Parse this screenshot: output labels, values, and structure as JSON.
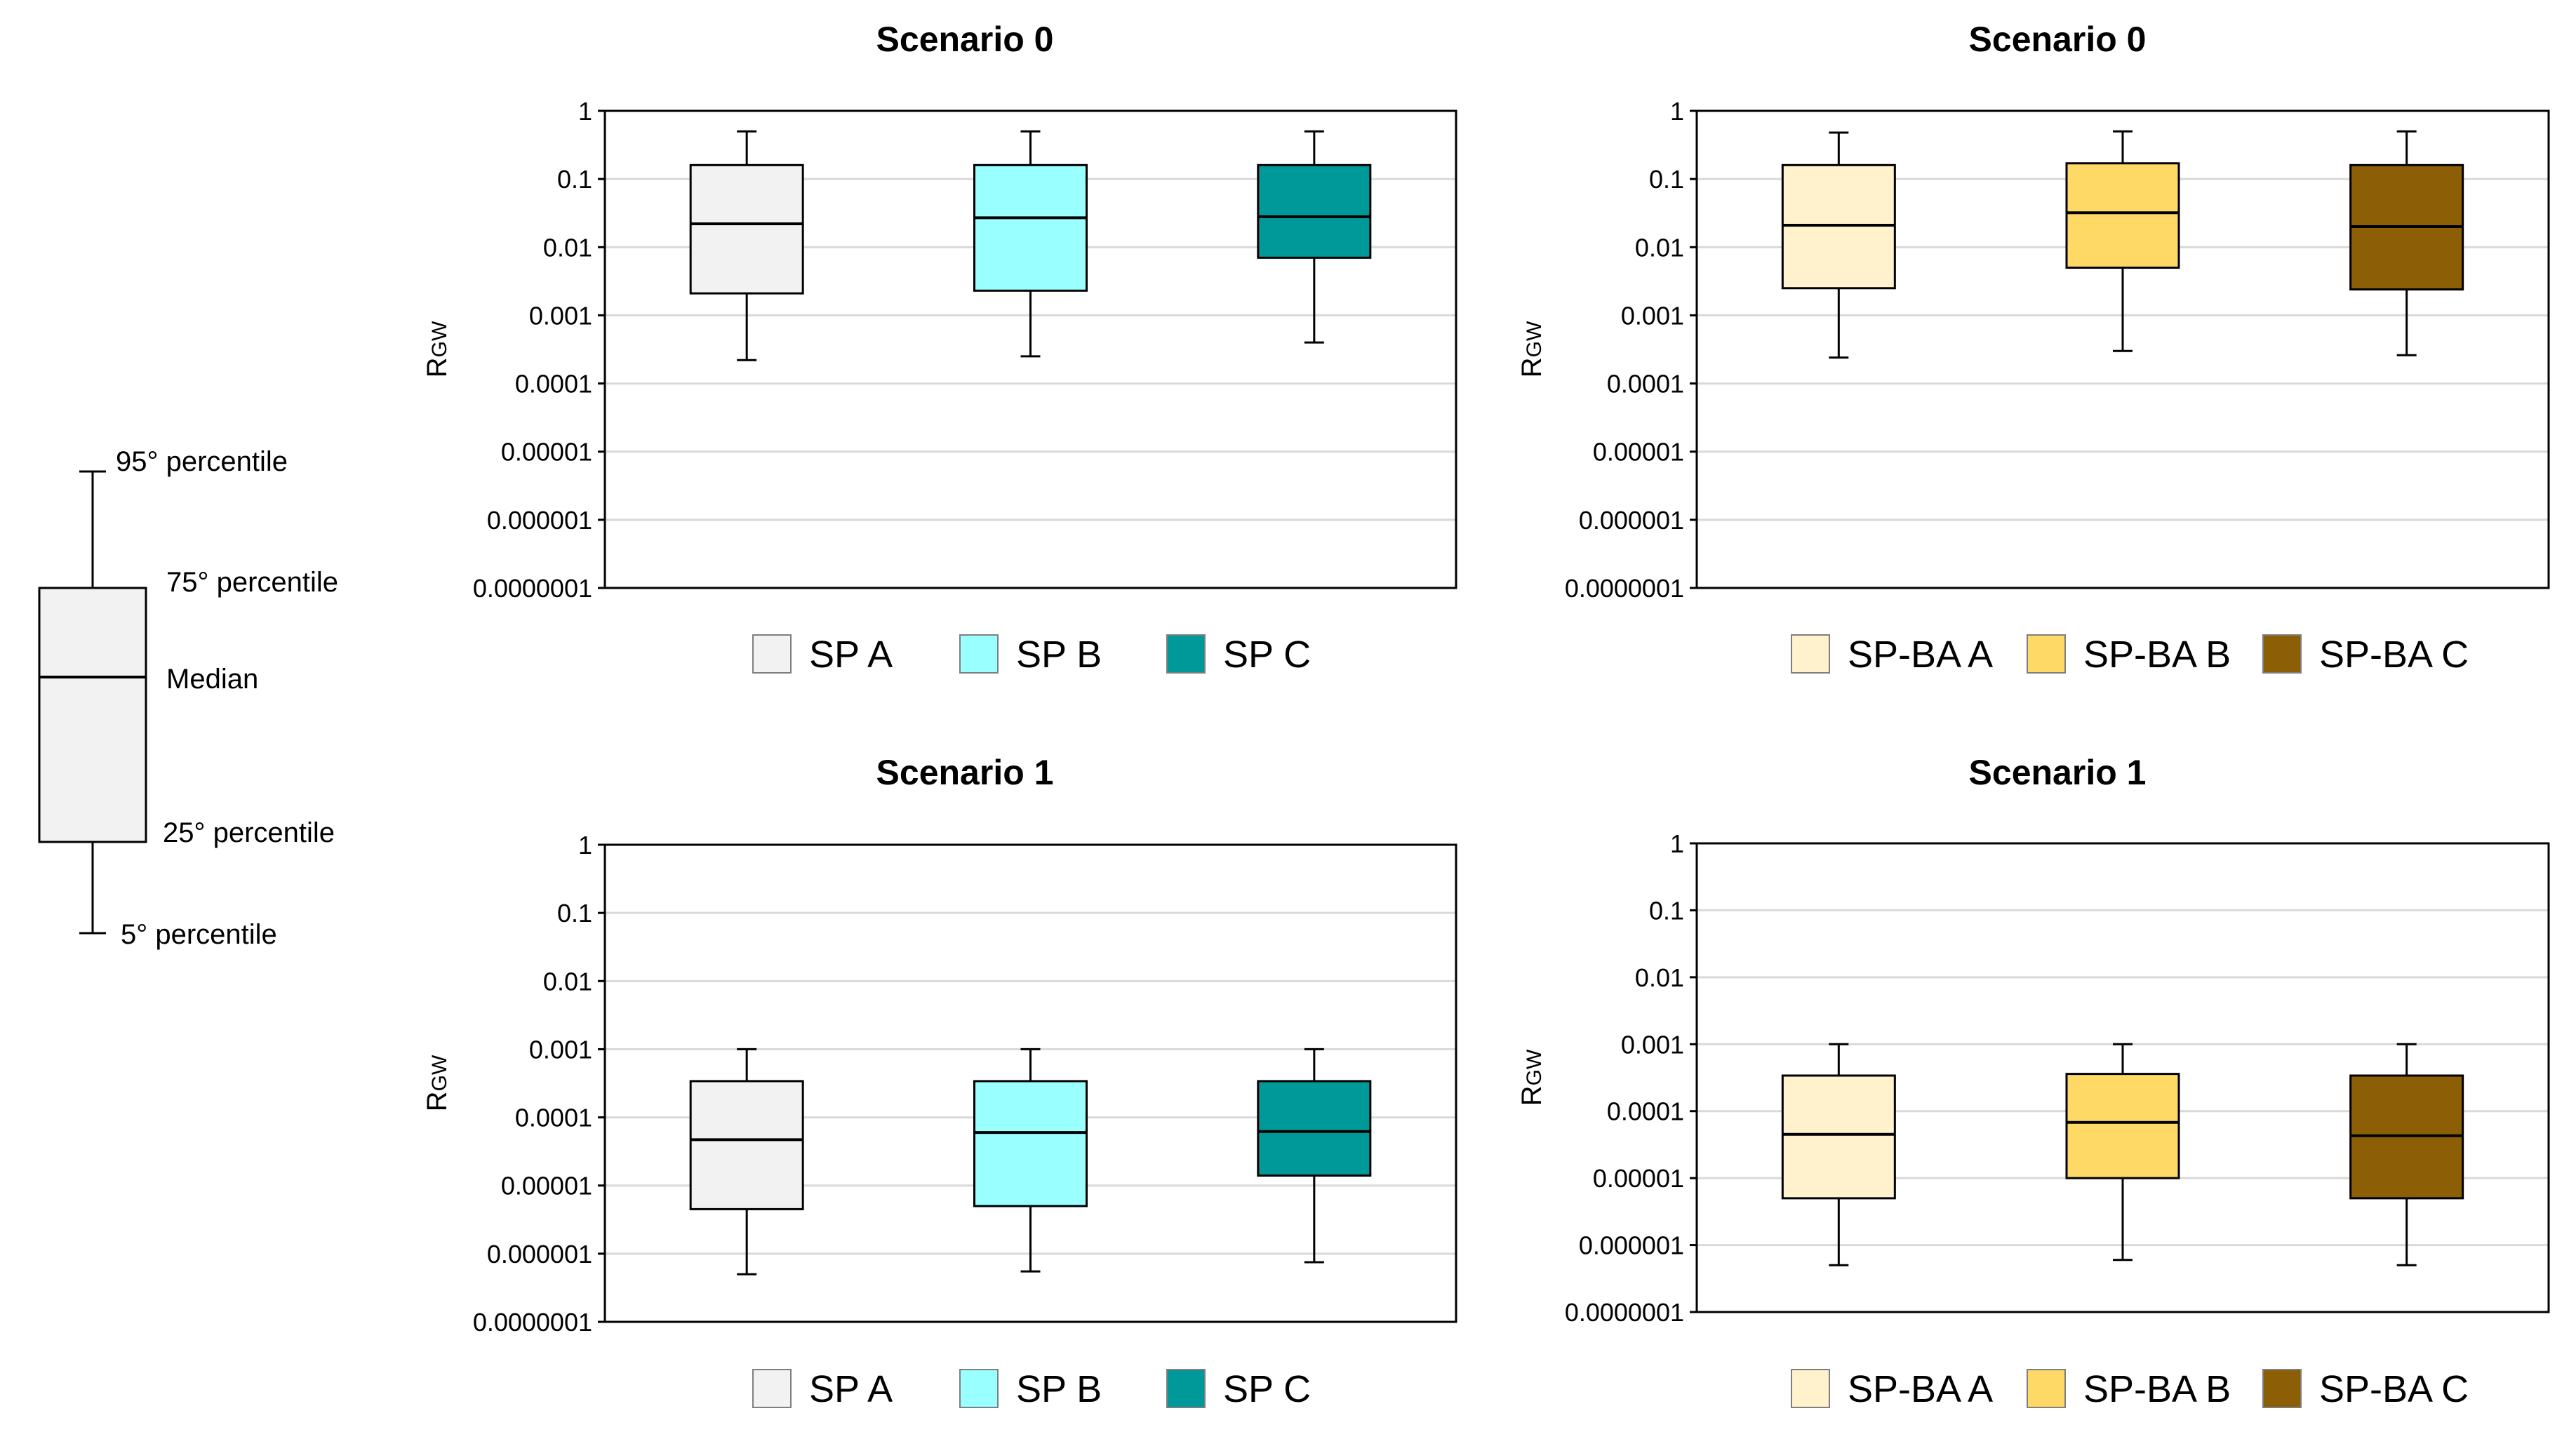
{
  "key": {
    "p95": "95° percentile",
    "p75": "75° percentile",
    "median": "Median",
    "p25": "25° percentile",
    "p5": "5° percentile",
    "fill": "#f2f2f2"
  },
  "chart_data": [
    {
      "type": "box",
      "title": "Scenario 0",
      "ylabel": "R",
      "ylabel_sub": "GW",
      "yscale": "log",
      "ylim": [
        1e-07,
        1
      ],
      "yticks": [
        "1",
        "0.1",
        "0.01",
        "0.001",
        "0.0001",
        "0.00001",
        "0.000001",
        "0.0000001"
      ],
      "series": [
        {
          "name": "SP A",
          "color": "#f2f2f2",
          "p5": 0.00022,
          "p25": 0.0021,
          "median": 0.022,
          "p75": 0.16,
          "p95": 0.5
        },
        {
          "name": "SP B",
          "color": "#99ffff",
          "p5": 0.00025,
          "p25": 0.0023,
          "median": 0.027,
          "p75": 0.16,
          "p95": 0.5
        },
        {
          "name": "SP C",
          "color": "#009999",
          "p5": 0.0004,
          "p25": 0.007,
          "median": 0.028,
          "p75": 0.16,
          "p95": 0.5
        }
      ]
    },
    {
      "type": "box",
      "title": "Scenario 0",
      "ylabel": "R",
      "ylabel_sub": "GW",
      "yscale": "log",
      "ylim": [
        1e-07,
        1
      ],
      "yticks": [
        "1",
        "0.1",
        "0.01",
        "0.001",
        "0.0001",
        "0.00001",
        "0.000001",
        "0.0000001"
      ],
      "series": [
        {
          "name": "SP-BA A",
          "color": "#fff2cc",
          "p5": 0.00024,
          "p25": 0.0025,
          "median": 0.021,
          "p75": 0.16,
          "p95": 0.48
        },
        {
          "name": "SP-BA B",
          "color": "#ffd966",
          "p5": 0.0003,
          "p25": 0.005,
          "median": 0.032,
          "p75": 0.17,
          "p95": 0.5
        },
        {
          "name": "SP-BA C",
          "color": "#8c5e05",
          "p5": 0.00026,
          "p25": 0.0024,
          "median": 0.02,
          "p75": 0.16,
          "p95": 0.5
        }
      ]
    },
    {
      "type": "box",
      "title": "Scenario 1",
      "ylabel": "R",
      "ylabel_sub": "GW",
      "yscale": "log",
      "ylim": [
        1e-07,
        1
      ],
      "yticks": [
        "1",
        "0.1",
        "0.01",
        "0.001",
        "0.0001",
        "0.00001",
        "0.000001",
        "0.0000001"
      ],
      "series": [
        {
          "name": "SP A",
          "color": "#f2f2f2",
          "p5": 5e-07,
          "p25": 4.5e-06,
          "median": 4.7e-05,
          "p75": 0.00034,
          "p95": 0.001
        },
        {
          "name": "SP B",
          "color": "#99ffff",
          "p5": 5.5e-07,
          "p25": 5e-06,
          "median": 6e-05,
          "p75": 0.00034,
          "p95": 0.001
        },
        {
          "name": "SP C",
          "color": "#009999",
          "p5": 7.5e-07,
          "p25": 1.4e-05,
          "median": 6.2e-05,
          "p75": 0.00034,
          "p95": 0.001
        }
      ]
    },
    {
      "type": "box",
      "title": "Scenario 1",
      "ylabel": "R",
      "ylabel_sub": "GW",
      "yscale": "log",
      "ylim": [
        1e-07,
        1
      ],
      "yticks": [
        "1",
        "0.1",
        "0.01",
        "0.001",
        "0.0001",
        "0.00001",
        "0.000001",
        "0.0000001"
      ],
      "series": [
        {
          "name": "SP-BA A",
          "color": "#fff2cc",
          "p5": 5e-07,
          "p25": 5e-06,
          "median": 4.5e-05,
          "p75": 0.00034,
          "p95": 0.001
        },
        {
          "name": "SP-BA B",
          "color": "#ffd966",
          "p5": 6e-07,
          "p25": 1e-05,
          "median": 6.8e-05,
          "p75": 0.00036,
          "p95": 0.001
        },
        {
          "name": "SP-BA C",
          "color": "#8c5e05",
          "p5": 5e-07,
          "p25": 5e-06,
          "median": 4.3e-05,
          "p75": 0.00034,
          "p95": 0.001
        }
      ]
    }
  ]
}
